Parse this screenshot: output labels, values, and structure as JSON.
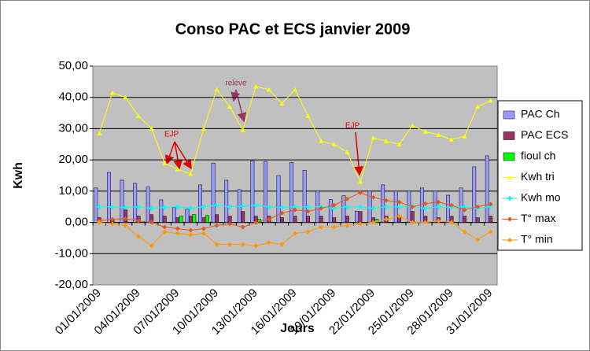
{
  "chart_data": {
    "type": "bar",
    "title": "Conso PAC et ECS janvier 2009",
    "y_label": "Kwh",
    "x_label": "Jours",
    "annotations": [
      "EJP",
      "relève",
      "EJP"
    ],
    "categories": [
      "01/01/2009",
      null,
      null,
      "04/01/2009",
      null,
      null,
      "07/01/2009",
      null,
      null,
      "10/01/2009",
      null,
      null,
      "13/01/2009",
      null,
      null,
      "16/01/2009",
      null,
      null,
      "19/01/2009",
      null,
      null,
      "22/01/2009",
      null,
      null,
      "25/01/2009",
      null,
      null,
      "28/01/2009",
      null,
      null,
      "31/01/2009"
    ],
    "ylim": [
      -20,
      50
    ],
    "yticks": [
      {
        "value": -20,
        "label": "-20,00"
      },
      {
        "value": -10,
        "label": "-10,00"
      },
      {
        "value": 0,
        "label": "0,00"
      },
      {
        "value": 10,
        "label": "10,00"
      },
      {
        "value": 20,
        "label": "20,00"
      },
      {
        "value": 30,
        "label": "30,00"
      },
      {
        "value": 40,
        "label": "40,00"
      },
      {
        "value": 50,
        "label": "50,00"
      }
    ],
    "grid": true,
    "legend": "right",
    "series": [
      {
        "name": "PAC Ch",
        "type": "bar",
        "color": "#9999ff",
        "values": [
          11,
          16,
          13.5,
          12.5,
          11.3,
          7.2,
          4.8,
          4.2,
          12,
          19,
          13.5,
          10.5,
          19.7,
          19.5,
          15,
          19.2,
          16.7,
          10,
          7.3,
          8.5,
          3.6,
          10,
          12,
          10,
          10,
          11,
          10,
          8.7,
          11,
          17.8,
          21.3
        ]
      },
      {
        "name": "PAC ECS",
        "type": "bar",
        "color": "#993366",
        "values": [
          1.5,
          1,
          4,
          2,
          2.5,
          2,
          1.5,
          2,
          1.5,
          2.5,
          2,
          3.5,
          2,
          2,
          1.5,
          2,
          2,
          2,
          1.5,
          2,
          3.5,
          1.5,
          2,
          2,
          3.5,
          2,
          1.5,
          2,
          2,
          1.5,
          2
        ]
      },
      {
        "name": "fioul ch",
        "type": "bar",
        "color": "#00ff00",
        "values": [
          0,
          0,
          0,
          0,
          0,
          0,
          2,
          2.5,
          2.2,
          0,
          0,
          0,
          1,
          0,
          0,
          0,
          0,
          0,
          0,
          0,
          0,
          1,
          0,
          0,
          0,
          0,
          0,
          0,
          0,
          0,
          0
        ]
      },
      {
        "name": "Kwh tri",
        "type": "line",
        "color": "#ffff00",
        "marker": "triangle",
        "values": [
          28.5,
          41.5,
          40,
          34,
          30,
          19,
          17,
          15.5,
          30,
          42.5,
          37,
          29.5,
          43.5,
          42.5,
          38,
          42.5,
          34,
          26,
          25,
          22.5,
          13,
          27,
          26,
          25,
          31,
          29,
          28,
          26.5,
          27.5,
          37,
          39
        ]
      },
      {
        "name": "Kwh mo",
        "type": "line",
        "color": "#00ffff",
        "marker": "cross",
        "values": [
          5,
          5,
          4.8,
          5,
          4.5,
          4.8,
          5,
          4.5,
          5,
          5.5,
          5,
          5.2,
          5.5,
          5,
          4.8,
          5,
          5,
          5,
          4.5,
          5,
          5,
          4.5,
          5,
          5,
          5,
          4.5,
          5,
          4.8,
          5,
          4.5,
          5
        ]
      },
      {
        "name": "T° max",
        "type": "line",
        "color": "#e2581c",
        "marker": "diamond",
        "values": [
          0.5,
          1,
          1.2,
          0.5,
          0,
          -1.5,
          -2,
          -2.5,
          -2,
          -1,
          -0.5,
          -1.5,
          0,
          1,
          3,
          4,
          3.5,
          4.5,
          5.5,
          7.5,
          9.5,
          8,
          7,
          6.5,
          5,
          6,
          6.5,
          5.5,
          4,
          5,
          5.8
        ]
      },
      {
        "name": "T° min",
        "type": "line",
        "color": "#ff9900",
        "marker": "diamond",
        "values": [
          0,
          -0.5,
          -1,
          -4.5,
          -7.5,
          -3,
          -3.5,
          -4,
          -3.5,
          -7,
          -7,
          -7,
          -7.5,
          -6.5,
          -7,
          -3.5,
          -3,
          -1.5,
          -1.5,
          -1,
          -0.5,
          0,
          1,
          2,
          0,
          0,
          0.5,
          0,
          -3,
          -5.5,
          -3
        ]
      }
    ]
  }
}
